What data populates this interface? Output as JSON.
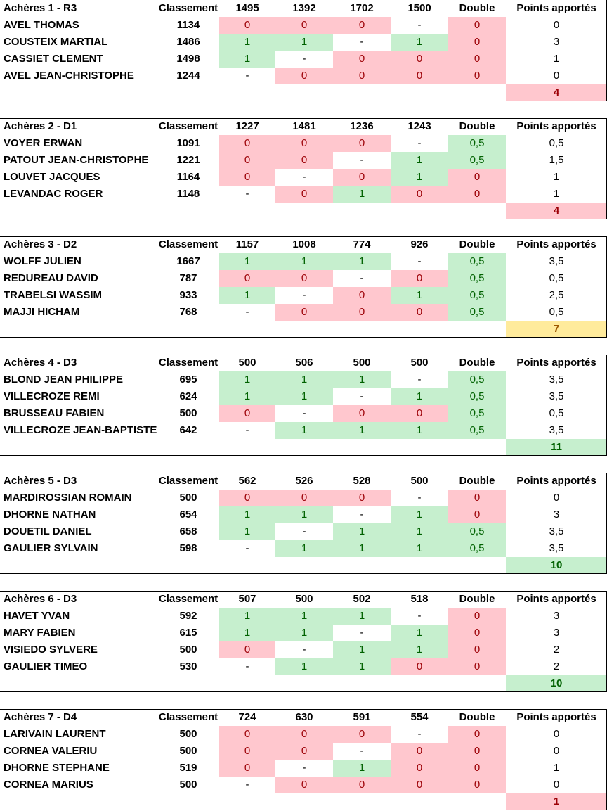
{
  "columns": {
    "classement": "Classement",
    "double": "Double",
    "points": "Points apportés"
  },
  "colors": {
    "loss_bg": "#ffc7ce",
    "loss_fg": "#9c0006",
    "win_bg": "#c6efce",
    "win_fg": "#006100",
    "mid_bg": "#ffeb9c",
    "mid_fg": "#9c5700"
  },
  "teams": [
    {
      "title": "Achères 1 - R3",
      "opponents": [
        "1495",
        "1392",
        "1702",
        "1500"
      ],
      "players": [
        {
          "name": "AVEL THOMAS",
          "rank": "1134",
          "results": [
            "0",
            "0",
            "0",
            "-"
          ],
          "double": "0",
          "points": "0"
        },
        {
          "name": "COUSTEIX MARTIAL",
          "rank": "1486",
          "results": [
            "1",
            "1",
            "-",
            "1"
          ],
          "double": "0",
          "points": "3"
        },
        {
          "name": "CASSIET CLEMENT",
          "rank": "1498",
          "results": [
            "1",
            "-",
            "0",
            "0"
          ],
          "double": "0",
          "points": "1"
        },
        {
          "name": "AVEL JEAN-CHRISTOPHE",
          "rank": "1244",
          "results": [
            "-",
            "0",
            "0",
            "0"
          ],
          "double": "0",
          "points": "0"
        }
      ],
      "total": "4"
    },
    {
      "title": "Achères 2 - D1",
      "opponents": [
        "1227",
        "1481",
        "1236",
        "1243"
      ],
      "players": [
        {
          "name": "VOYER ERWAN",
          "rank": "1091",
          "results": [
            "0",
            "0",
            "0",
            "-"
          ],
          "double": "0,5",
          "points": "0,5"
        },
        {
          "name": "PATOUT JEAN-CHRISTOPHE",
          "rank": "1221",
          "results": [
            "0",
            "0",
            "-",
            "1"
          ],
          "double": "0,5",
          "points": "1,5"
        },
        {
          "name": "LOUVET JACQUES",
          "rank": "1164",
          "results": [
            "0",
            "-",
            "0",
            "1"
          ],
          "double": "0",
          "points": "1"
        },
        {
          "name": "LEVANDAC ROGER",
          "rank": "1148",
          "results": [
            "-",
            "0",
            "1",
            "0"
          ],
          "double": "0",
          "points": "1"
        }
      ],
      "total": "4"
    },
    {
      "title": "Achères 3 - D2",
      "opponents": [
        "1157",
        "1008",
        "774",
        "926"
      ],
      "players": [
        {
          "name": "WOLFF JULIEN",
          "rank": "1667",
          "results": [
            "1",
            "1",
            "1",
            "-"
          ],
          "double": "0,5",
          "points": "3,5"
        },
        {
          "name": "REDUREAU DAVID",
          "rank": "787",
          "results": [
            "0",
            "0",
            "-",
            "0"
          ],
          "double": "0,5",
          "points": "0,5"
        },
        {
          "name": "TRABELSI WASSIM",
          "rank": "933",
          "results": [
            "1",
            "-",
            "0",
            "1"
          ],
          "double": "0,5",
          "points": "2,5"
        },
        {
          "name": "MAJJI HICHAM",
          "rank": "768",
          "results": [
            "-",
            "0",
            "0",
            "0"
          ],
          "double": "0,5",
          "points": "0,5"
        }
      ],
      "total": "7"
    },
    {
      "title": "Achères 4 - D3",
      "opponents": [
        "500",
        "506",
        "500",
        "500"
      ],
      "players": [
        {
          "name": "BLOND JEAN PHILIPPE",
          "rank": "695",
          "results": [
            "1",
            "1",
            "1",
            "-"
          ],
          "double": "0,5",
          "points": "3,5"
        },
        {
          "name": "VILLECROZE REMI",
          "rank": "624",
          "results": [
            "1",
            "1",
            "-",
            "1"
          ],
          "double": "0,5",
          "points": "3,5"
        },
        {
          "name": "BRUSSEAU FABIEN",
          "rank": "500",
          "results": [
            "0",
            "-",
            "0",
            "0"
          ],
          "double": "0,5",
          "points": "0,5"
        },
        {
          "name": "VILLECROZE JEAN-BAPTISTE",
          "rank": "642",
          "results": [
            "-",
            "1",
            "1",
            "1"
          ],
          "double": "0,5",
          "points": "3,5"
        }
      ],
      "total": "11"
    },
    {
      "title": "Achères 5 - D3",
      "opponents": [
        "562",
        "526",
        "528",
        "500"
      ],
      "players": [
        {
          "name": "MARDIROSSIAN ROMAIN",
          "rank": "500",
          "results": [
            "0",
            "0",
            "0",
            "-"
          ],
          "double": "0",
          "points": "0"
        },
        {
          "name": "DHORNE NATHAN",
          "rank": "654",
          "results": [
            "1",
            "1",
            "-",
            "1"
          ],
          "double": "0",
          "points": "3"
        },
        {
          "name": "DOUETIL DANIEL",
          "rank": "658",
          "results": [
            "1",
            "-",
            "1",
            "1"
          ],
          "double": "0,5",
          "points": "3,5"
        },
        {
          "name": "GAULIER SYLVAIN",
          "rank": "598",
          "results": [
            "-",
            "1",
            "1",
            "1"
          ],
          "double": "0,5",
          "points": "3,5"
        }
      ],
      "total": "10"
    },
    {
      "title": "Achères 6 - D3",
      "opponents": [
        "507",
        "500",
        "502",
        "518"
      ],
      "players": [
        {
          "name": "HAVET YVAN",
          "rank": "592",
          "results": [
            "1",
            "1",
            "1",
            "-"
          ],
          "double": "0",
          "points": "3"
        },
        {
          "name": "MARY FABIEN",
          "rank": "615",
          "results": [
            "1",
            "1",
            "-",
            "1"
          ],
          "double": "0",
          "points": "3"
        },
        {
          "name": "VISIEDO SYLVERE",
          "rank": "500",
          "results": [
            "0",
            "-",
            "1",
            "1"
          ],
          "double": "0",
          "points": "2"
        },
        {
          "name": "GAULIER TIMEO",
          "rank": "530",
          "results": [
            "-",
            "1",
            "1",
            "0"
          ],
          "double": "0",
          "points": "2"
        }
      ],
      "total": "10"
    },
    {
      "title": "Achères 7 - D4",
      "opponents": [
        "724",
        "630",
        "591",
        "554"
      ],
      "players": [
        {
          "name": "LARIVAIN LAURENT",
          "rank": "500",
          "results": [
            "0",
            "0",
            "0",
            "-"
          ],
          "double": "0",
          "points": "0"
        },
        {
          "name": "CORNEA VALERIU",
          "rank": "500",
          "results": [
            "0",
            "0",
            "-",
            "0"
          ],
          "double": "0",
          "points": "0"
        },
        {
          "name": "DHORNE STEPHANE",
          "rank": "519",
          "results": [
            "0",
            "-",
            "1",
            "0"
          ],
          "double": "0",
          "points": "1"
        },
        {
          "name": "CORNEA MARIUS",
          "rank": "500",
          "results": [
            "-",
            "0",
            "0",
            "0"
          ],
          "double": "0",
          "points": "0"
        }
      ],
      "total": "1"
    }
  ]
}
